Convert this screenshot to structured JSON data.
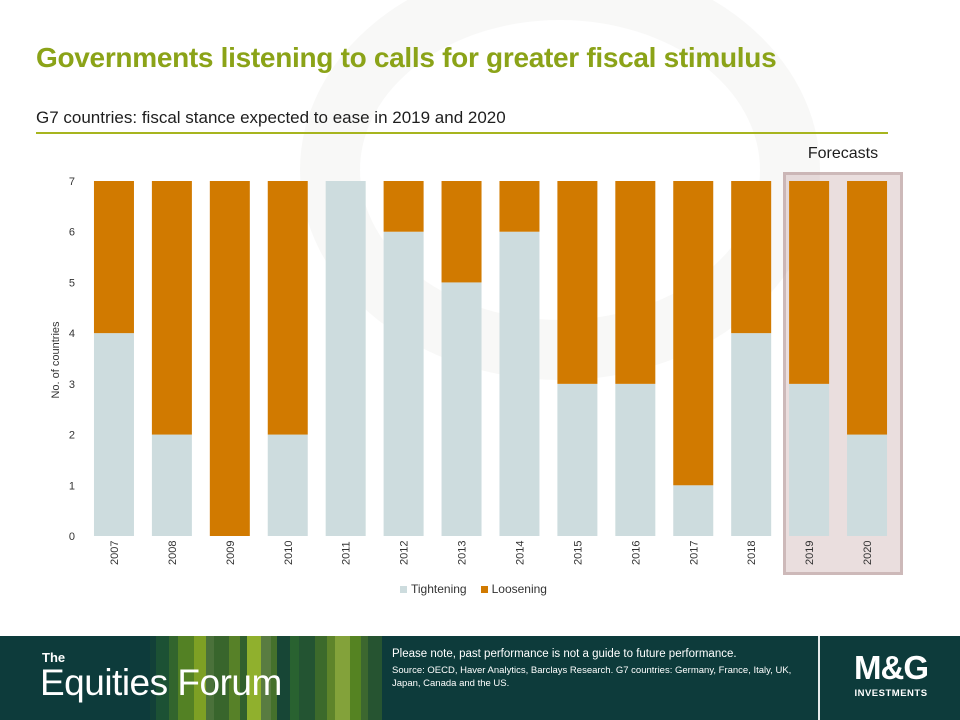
{
  "header": {
    "title": "Governments listening to calls for greater fiscal stimulus",
    "subtitle": "G7 countries: fiscal stance expected to ease in 2019 and 2020"
  },
  "annotation": {
    "forecast_label": "Forecasts"
  },
  "colors": {
    "tightening": "#cddcde",
    "loosening": "#d17a00",
    "title": "#8ba318",
    "footer": "#0d3b3b"
  },
  "chart_data": {
    "type": "bar",
    "stacked": true,
    "categories": [
      "2007",
      "2008",
      "2009",
      "2010",
      "2011",
      "2012",
      "2013",
      "2014",
      "2015",
      "2016",
      "2017",
      "2018",
      "2019",
      "2020"
    ],
    "series": [
      {
        "name": "Tightening",
        "color": "#cddcde",
        "values": [
          4,
          2,
          0,
          2,
          7,
          6,
          5,
          6,
          3,
          3,
          1,
          4,
          3,
          2
        ]
      },
      {
        "name": "Loosening",
        "color": "#d17a00",
        "values": [
          3,
          5,
          7,
          5,
          0,
          1,
          2,
          1,
          4,
          4,
          6,
          3,
          4,
          5
        ]
      }
    ],
    "ylabel": "No. of countries",
    "xlabel": "",
    "ylim": [
      0,
      7
    ],
    "yticks": [
      0,
      1,
      2,
      3,
      4,
      5,
      6,
      7
    ],
    "forecast_categories": [
      "2019",
      "2020"
    ],
    "legend_position": "bottom",
    "grid": false
  },
  "footer": {
    "brand_prefix": "The",
    "brand_name": "Equities Forum",
    "disclaimer": "Please note, past performance  is not a guide to future performance.",
    "source": "Source: OECD,  Haver Analytics, Barclays Research. G7 countries: Germany, France, Italy, UK, Japan, Canada and the US.",
    "logo_mark": "M&G",
    "logo_sub": "INVESTMENTS"
  }
}
